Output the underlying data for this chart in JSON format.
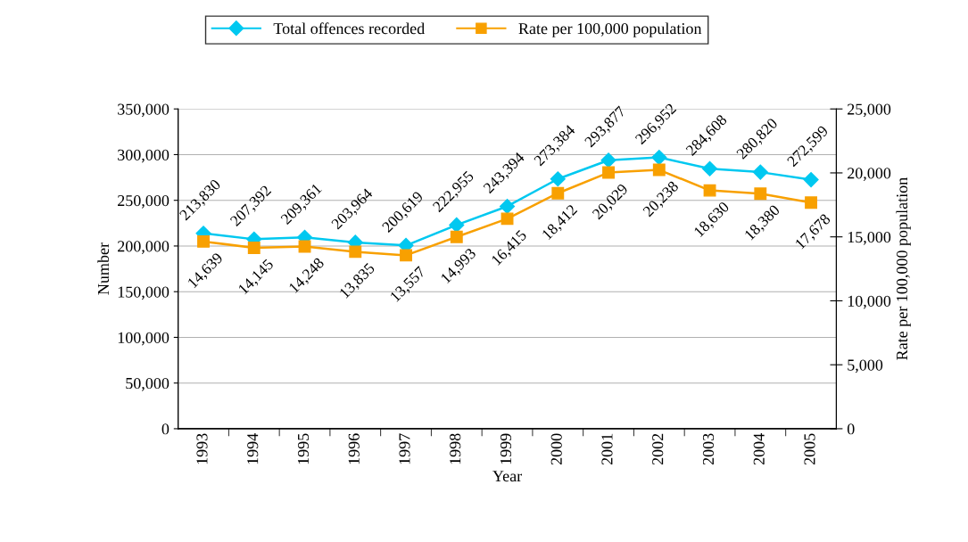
{
  "chart_data": {
    "type": "line",
    "xlabel": "Year",
    "ylabel": "Number",
    "y2label": "Rate per 100,000 population",
    "categories": [
      "1993",
      "1994",
      "1995",
      "1996",
      "1997",
      "1998",
      "1999",
      "2000",
      "2001",
      "2002",
      "2003",
      "2004",
      "2005"
    ],
    "series": [
      {
        "name": "Total offences recorded",
        "color": "#00c8f0",
        "marker": "diamond",
        "values": [
          213830,
          207392,
          209361,
          203964,
          200619,
          222955,
          243394,
          273384,
          293877,
          296952,
          284608,
          280820,
          272599
        ],
        "value_labels": [
          "213,830",
          "207,392",
          "209,361",
          "203,964",
          "200,619",
          "222,955",
          "243,394",
          "273,384",
          "293,877",
          "296,952",
          "284,608",
          "280,820",
          "272,599"
        ]
      },
      {
        "name": "Rate per 100,000 population",
        "color": "#f8a000",
        "marker": "square",
        "axis": "y2",
        "values": [
          14639,
          14145,
          14248,
          13835,
          13557,
          14993,
          16415,
          18412,
          20029,
          20238,
          18630,
          18380,
          17678
        ],
        "value_labels": [
          "14,639",
          "14,145",
          "14,248",
          "13,835",
          "13,557",
          "14,993",
          "16,415",
          "18,412",
          "20,029",
          "20,238",
          "18,630",
          "18,380",
          "17,678"
        ]
      }
    ],
    "ylim": [
      0,
      350000
    ],
    "yticks": [
      {
        "value": 0,
        "label": "0"
      },
      {
        "value": 50000,
        "label": "50,000"
      },
      {
        "value": 100000,
        "label": "100,000"
      },
      {
        "value": 150000,
        "label": "150,000"
      },
      {
        "value": 200000,
        "label": "200,000"
      },
      {
        "value": 250000,
        "label": "250,000"
      },
      {
        "value": 300000,
        "label": "300,000"
      },
      {
        "value": 350000,
        "label": "350,000"
      }
    ],
    "y2lim": [
      0,
      25000
    ],
    "y2ticks": [
      {
        "value": 0,
        "label": "0"
      },
      {
        "value": 5000,
        "label": "5,000"
      },
      {
        "value": 10000,
        "label": "10,000"
      },
      {
        "value": 15000,
        "label": "15,000"
      },
      {
        "value": 20000,
        "label": "20,000"
      },
      {
        "value": 25000,
        "label": "25,000"
      }
    ],
    "grid": "y",
    "legend": "top",
    "line_style": "solid"
  }
}
